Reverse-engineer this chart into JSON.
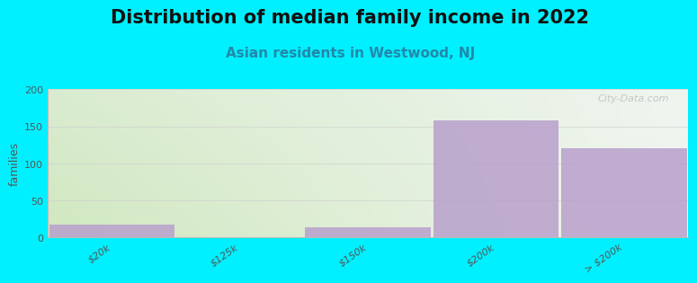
{
  "title": "Distribution of median family income in 2022",
  "subtitle": "Asian residents in Westwood, NJ",
  "ylabel": "families",
  "categories": [
    "$20k",
    "$125k",
    "$150k",
    "$200k",
    "> $200k"
  ],
  "values": [
    17,
    0,
    14,
    158,
    120
  ],
  "bar_color": "#b8a0cc",
  "bg_color": "#00f0ff",
  "ylim": [
    0,
    200
  ],
  "yticks": [
    0,
    50,
    100,
    150,
    200
  ],
  "watermark": "City-Data.com",
  "bar_width": 0.98,
  "title_fontsize": 15,
  "subtitle_fontsize": 11,
  "ylabel_fontsize": 9,
  "tick_fontsize": 8,
  "grid_color": "#cccccc",
  "grid_yticks": [
    50,
    100,
    150,
    200
  ],
  "grad_left": "#d0e8c0",
  "grad_right": "#f0f5ee",
  "grad_top_right": "#e8f0ee"
}
